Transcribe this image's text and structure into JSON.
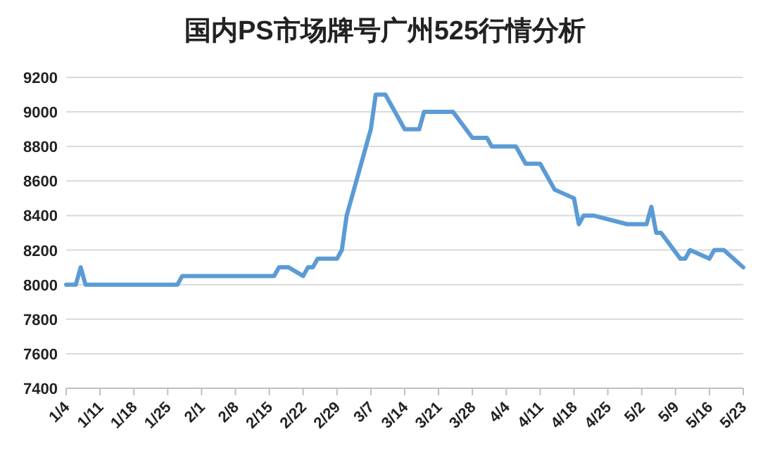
{
  "chart_data": {
    "type": "line",
    "title": "国内PS市场牌号广州525行情分析",
    "x": [
      "--01-04",
      "--01-06",
      "--01-07",
      "--01-08",
      "--01-27",
      "--01-28",
      "--02-16",
      "--02-17",
      "--02-19",
      "--02-22",
      "--02-23",
      "--02-24",
      "--02-25",
      "--02-29",
      "--03-01",
      "--03-02",
      "--03-07",
      "--03-08",
      "--03-10",
      "--03-14",
      "--03-17",
      "--03-18",
      "--03-24",
      "--03-28",
      "--03-31",
      "--04-01",
      "--04-06",
      "--04-08",
      "--04-11",
      "--04-14",
      "--04-18",
      "--04-19",
      "--04-20",
      "--04-22",
      "--04-29",
      "--05-03",
      "--05-04",
      "--05-05",
      "--05-06",
      "--05-10",
      "--05-11",
      "--05-12",
      "--05-16",
      "--05-17",
      "--05-19",
      "--05-23"
    ],
    "series": [
      {
        "color": "#5b9bd5",
        "values": [
          8000,
          8000,
          8100,
          8000,
          8000,
          8050,
          8050,
          8100,
          8100,
          8050,
          8100,
          8100,
          8150,
          8150,
          8200,
          8400,
          8900,
          9100,
          9100,
          8900,
          8900,
          9000,
          9000,
          8850,
          8850,
          8800,
          8800,
          8700,
          8700,
          8550,
          8500,
          8350,
          8400,
          8400,
          8350,
          8350,
          8450,
          8300,
          8300,
          8150,
          8150,
          8200,
          8150,
          8200,
          8200,
          8100
        ]
      }
    ],
    "xlim": [
      "--01-04",
      "--05-23"
    ],
    "xticks": [
      {
        "value": "--01-04",
        "label": "1/4"
      },
      {
        "value": "--01-11",
        "label": "1/11"
      },
      {
        "value": "--01-18",
        "label": "1/18"
      },
      {
        "value": "--01-25",
        "label": "1/25"
      },
      {
        "value": "--02-01",
        "label": "2/1"
      },
      {
        "value": "--02-08",
        "label": "2/8"
      },
      {
        "value": "--02-15",
        "label": "2/15"
      },
      {
        "value": "--02-22",
        "label": "2/22"
      },
      {
        "value": "--02-29",
        "label": "2/29"
      },
      {
        "value": "--03-07",
        "label": "3/7"
      },
      {
        "value": "--03-14",
        "label": "3/14"
      },
      {
        "value": "--03-21",
        "label": "3/21"
      },
      {
        "value": "--03-28",
        "label": "3/28"
      },
      {
        "value": "--04-04",
        "label": "4/4"
      },
      {
        "value": "--04-11",
        "label": "4/11"
      },
      {
        "value": "--04-18",
        "label": "4/18"
      },
      {
        "value": "--04-25",
        "label": "4/25"
      },
      {
        "value": "--05-02",
        "label": "5/2"
      },
      {
        "value": "--05-09",
        "label": "5/9"
      },
      {
        "value": "--05-16",
        "label": "5/16"
      },
      {
        "value": "--05-23",
        "label": "5/23"
      }
    ],
    "ylim": [
      7400,
      9200
    ],
    "yticks": [
      7400,
      7600,
      7800,
      8000,
      8200,
      8400,
      8600,
      8800,
      9000,
      9200
    ],
    "grid": "y",
    "marker": "none",
    "line_style": "solid"
  }
}
